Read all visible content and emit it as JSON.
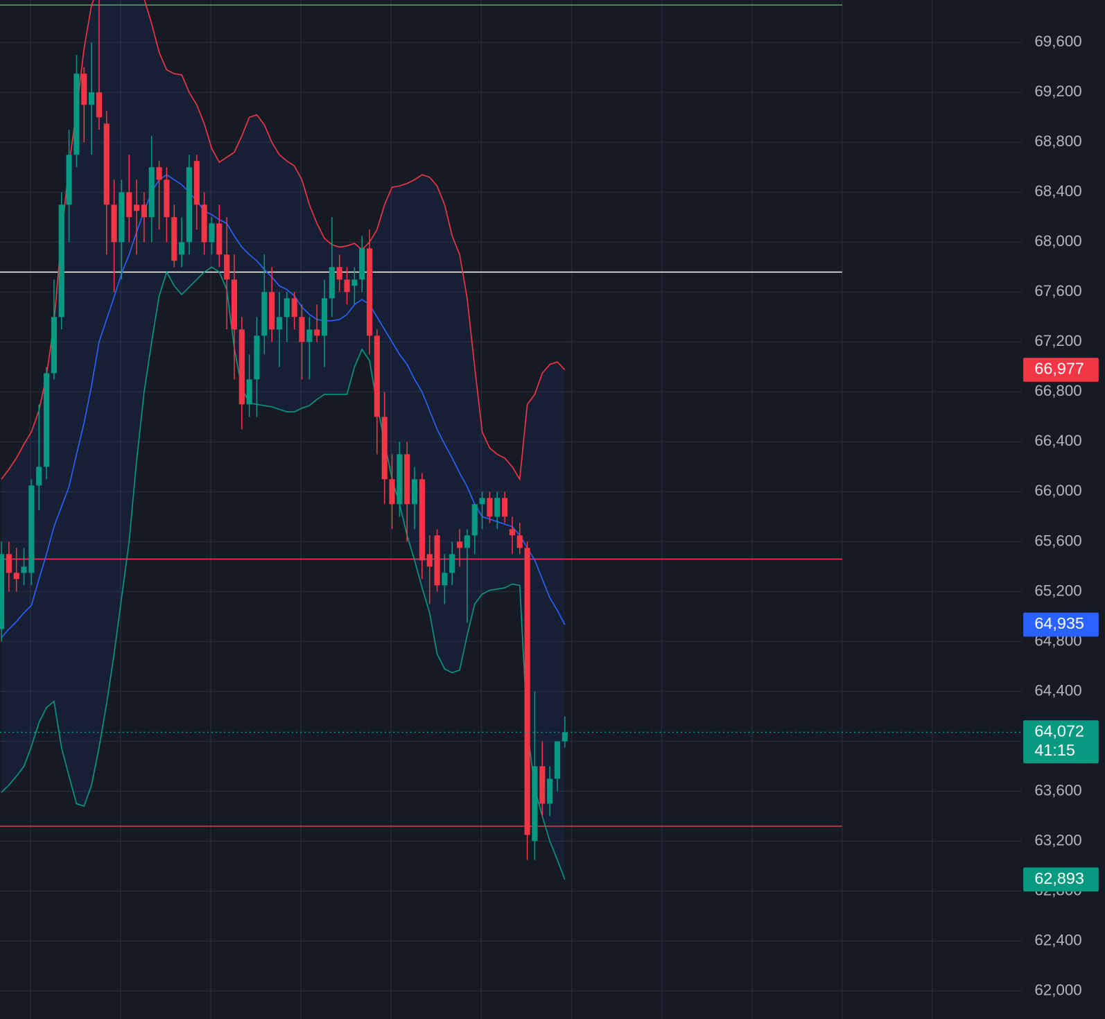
{
  "chart_data": {
    "type": "candlestick",
    "up_color": "#089981",
    "down_color": "#f23645",
    "grid": true,
    "ylim": [
      61775,
      69940
    ],
    "yticks": [
      {
        "value": 62000,
        "label": "62,000"
      },
      {
        "value": 62400,
        "label": "62,400"
      },
      {
        "value": 62800,
        "label": "62,800"
      },
      {
        "value": 63200,
        "label": "63,200"
      },
      {
        "value": 63600,
        "label": "63,600"
      },
      {
        "value": 64000,
        "label": "64,000"
      },
      {
        "value": 64400,
        "label": "64,400"
      },
      {
        "value": 64800,
        "label": "64,800"
      },
      {
        "value": 65200,
        "label": "65,200"
      },
      {
        "value": 65600,
        "label": "65,600"
      },
      {
        "value": 66000,
        "label": "66,000"
      },
      {
        "value": 66400,
        "label": "66,400"
      },
      {
        "value": 66800,
        "label": "66,800"
      },
      {
        "value": 67200,
        "label": "67,200"
      },
      {
        "value": 67600,
        "label": "67,600"
      },
      {
        "value": 68000,
        "label": "68,000"
      },
      {
        "value": 68400,
        "label": "68,400"
      },
      {
        "value": 68800,
        "label": "68,800"
      },
      {
        "value": 69200,
        "label": "69,200"
      },
      {
        "value": 69600,
        "label": "69,600"
      }
    ],
    "ohlc": [
      [
        64900,
        65600,
        64800,
        65500
      ],
      [
        65500,
        65600,
        65200,
        65350
      ],
      [
        65350,
        65550,
        65200,
        65300
      ],
      [
        65350,
        65550,
        65250,
        65400
      ],
      [
        65350,
        66100,
        65250,
        66050
      ],
      [
        66050,
        66700,
        65850,
        66200
      ],
      [
        66200,
        67000,
        66100,
        66950
      ],
      [
        66950,
        67700,
        66900,
        67400
      ],
      [
        67400,
        68400,
        67300,
        68300
      ],
      [
        68300,
        68900,
        68000,
        68700
      ],
      [
        68700,
        69500,
        68600,
        69350
      ],
      [
        69350,
        69400,
        68800,
        69100
      ],
      [
        69100,
        69600,
        68700,
        69200
      ],
      [
        69200,
        69950,
        68900,
        69000
      ],
      [
        68950,
        69050,
        67900,
        68300
      ],
      [
        68300,
        68500,
        67600,
        68000
      ],
      [
        68000,
        68500,
        67700,
        68400
      ],
      [
        68400,
        68700,
        68000,
        68200
      ],
      [
        68300,
        68500,
        67900,
        68250
      ],
      [
        68300,
        68400,
        68000,
        68200
      ],
      [
        68200,
        68850,
        68000,
        68600
      ],
      [
        68600,
        68650,
        68100,
        68500
      ],
      [
        68500,
        68600,
        68000,
        68200
      ],
      [
        68200,
        68300,
        67800,
        67850
      ],
      [
        67900,
        68200,
        67800,
        68000
      ],
      [
        68000,
        68700,
        67900,
        68600
      ],
      [
        68650,
        68700,
        68100,
        68300
      ],
      [
        68300,
        68400,
        67900,
        68000
      ],
      [
        68000,
        68200,
        67900,
        68150
      ],
      [
        68150,
        68300,
        67800,
        67900
      ],
      [
        67900,
        68200,
        67300,
        67700
      ],
      [
        67700,
        67900,
        66900,
        67300
      ],
      [
        67300,
        67400,
        66500,
        66700
      ],
      [
        66700,
        67100,
        66600,
        66900
      ],
      [
        66900,
        67400,
        66600,
        67250
      ],
      [
        67250,
        67900,
        67100,
        67600
      ],
      [
        67600,
        67800,
        67200,
        67300
      ],
      [
        67300,
        67600,
        67000,
        67400
      ],
      [
        67400,
        67600,
        67200,
        67550
      ],
      [
        67550,
        67600,
        67300,
        67400
      ],
      [
        67400,
        67500,
        66900,
        67200
      ],
      [
        67200,
        67400,
        66900,
        67300
      ],
      [
        67300,
        67500,
        67200,
        67250
      ],
      [
        67250,
        67700,
        67000,
        67550
      ],
      [
        67550,
        68200,
        67400,
        67800
      ],
      [
        67800,
        67900,
        67600,
        67700
      ],
      [
        67700,
        67800,
        67500,
        67600
      ],
      [
        67650,
        67800,
        67500,
        67700
      ],
      [
        67700,
        68050,
        67600,
        67950
      ],
      [
        67950,
        68100,
        67100,
        67250
      ],
      [
        67250,
        67300,
        66300,
        66600
      ],
      [
        66600,
        66800,
        65900,
        66100
      ],
      [
        66100,
        66300,
        65700,
        65900
      ],
      [
        65900,
        66400,
        65800,
        66300
      ],
      [
        66300,
        66400,
        65600,
        65900
      ],
      [
        65900,
        66200,
        65700,
        66100
      ],
      [
        66100,
        66150,
        65300,
        65450
      ],
      [
        65500,
        65650,
        65100,
        65400
      ],
      [
        65650,
        65700,
        65200,
        65250
      ],
      [
        65250,
        65500,
        65100,
        65350
      ],
      [
        65350,
        65600,
        65250,
        65500
      ],
      [
        65600,
        65700,
        65400,
        65550
      ],
      [
        65550,
        65700,
        64950,
        65650
      ],
      [
        65650,
        65900,
        65500,
        65900
      ],
      [
        65900,
        66000,
        65700,
        65950
      ],
      [
        65950,
        66000,
        65750,
        65800
      ],
      [
        65800,
        66000,
        65700,
        65950
      ],
      [
        65950,
        66000,
        65750,
        65800
      ],
      [
        65700,
        65800,
        65500,
        65650
      ],
      [
        65650,
        65750,
        65500,
        65550
      ],
      [
        65550,
        65600,
        63050,
        63250
      ],
      [
        63200,
        64400,
        63050,
        63800
      ],
      [
        63800,
        64000,
        63400,
        63500
      ],
      [
        63500,
        63800,
        63400,
        63700
      ],
      [
        63700,
        64000,
        63600,
        64000
      ],
      [
        64000,
        64200,
        63950,
        64072
      ]
    ],
    "series": [
      {
        "color": "#f23645",
        "values": [
          66100,
          66180,
          66270,
          66380,
          66480,
          66650,
          66930,
          67350,
          68050,
          68620,
          69050,
          69550,
          69900,
          70050,
          70150,
          70200,
          70200,
          70150,
          70100,
          69950,
          69750,
          69520,
          69380,
          69350,
          69340,
          69200,
          69100,
          68950,
          68750,
          68640,
          68680,
          68720,
          68850,
          69000,
          69020,
          68940,
          68800,
          68700,
          68650,
          68610,
          68500,
          68300,
          68150,
          68030,
          67980,
          67960,
          67970,
          67990,
          67940,
          68000,
          68100,
          68300,
          68440,
          68450,
          68470,
          68500,
          68540,
          68520,
          68450,
          68300,
          68050,
          67900,
          67550,
          67000,
          66480,
          66350,
          66300,
          66270,
          66200,
          66100,
          66700,
          66780,
          66950,
          67020,
          67040,
          66977
        ]
      },
      {
        "color": "#2962ff",
        "values": [
          64830,
          64900,
          64960,
          65030,
          65090,
          65300,
          65500,
          65720,
          65880,
          66040,
          66300,
          66550,
          66850,
          67200,
          67380,
          67560,
          67750,
          67900,
          68080,
          68250,
          68400,
          68500,
          68540,
          68500,
          68460,
          68400,
          68330,
          68250,
          68220,
          68180,
          68150,
          68050,
          67960,
          67900,
          67850,
          67780,
          67720,
          67650,
          67620,
          67570,
          67480,
          67420,
          67380,
          67370,
          67370,
          67380,
          67420,
          67500,
          67540,
          67500,
          67400,
          67300,
          67200,
          67100,
          67020,
          66900,
          66800,
          66650,
          66500,
          66380,
          66270,
          66150,
          66040,
          65900,
          65800,
          65780,
          65760,
          65740,
          65720,
          65650,
          65550,
          65450,
          65300,
          65150,
          65050,
          64935
        ]
      },
      {
        "color": "#089981",
        "values": [
          63590,
          63650,
          63720,
          63800,
          63960,
          64150,
          64270,
          64320,
          63950,
          63720,
          63500,
          63480,
          63650,
          63950,
          64300,
          64700,
          65150,
          65600,
          66250,
          66800,
          67200,
          67570,
          67760,
          67650,
          67580,
          67640,
          67700,
          67760,
          67800,
          67760,
          67620,
          67150,
          66830,
          66710,
          66700,
          66690,
          66680,
          66660,
          66640,
          66640,
          66670,
          66690,
          66740,
          66780,
          66780,
          66780,
          66780,
          67000,
          67140,
          67050,
          66700,
          66400,
          66100,
          65900,
          65650,
          65450,
          65230,
          65030,
          64700,
          64580,
          64550,
          64570,
          64850,
          65100,
          65180,
          65210,
          65220,
          65230,
          65260,
          65250,
          64100,
          63620,
          63400,
          63200,
          63050,
          62893
        ]
      }
    ],
    "levels": [
      {
        "value": 69900,
        "color": "#4caf50"
      },
      {
        "value": 67760,
        "color": "#ffffff"
      },
      {
        "value": 65460,
        "color": "#f23645"
      },
      {
        "value": 63320,
        "color": "#f23645"
      }
    ],
    "price_tags": [
      {
        "value": 66977,
        "label": "66,977",
        "color": "#f23645"
      },
      {
        "value": 64935,
        "label": "64,935",
        "color": "#2962ff"
      },
      {
        "value": 64072,
        "label": "64,072",
        "color": "#089981"
      },
      {
        "value": 62893,
        "label": "62,893",
        "color": "#089981"
      }
    ],
    "countdown": "41:15"
  }
}
